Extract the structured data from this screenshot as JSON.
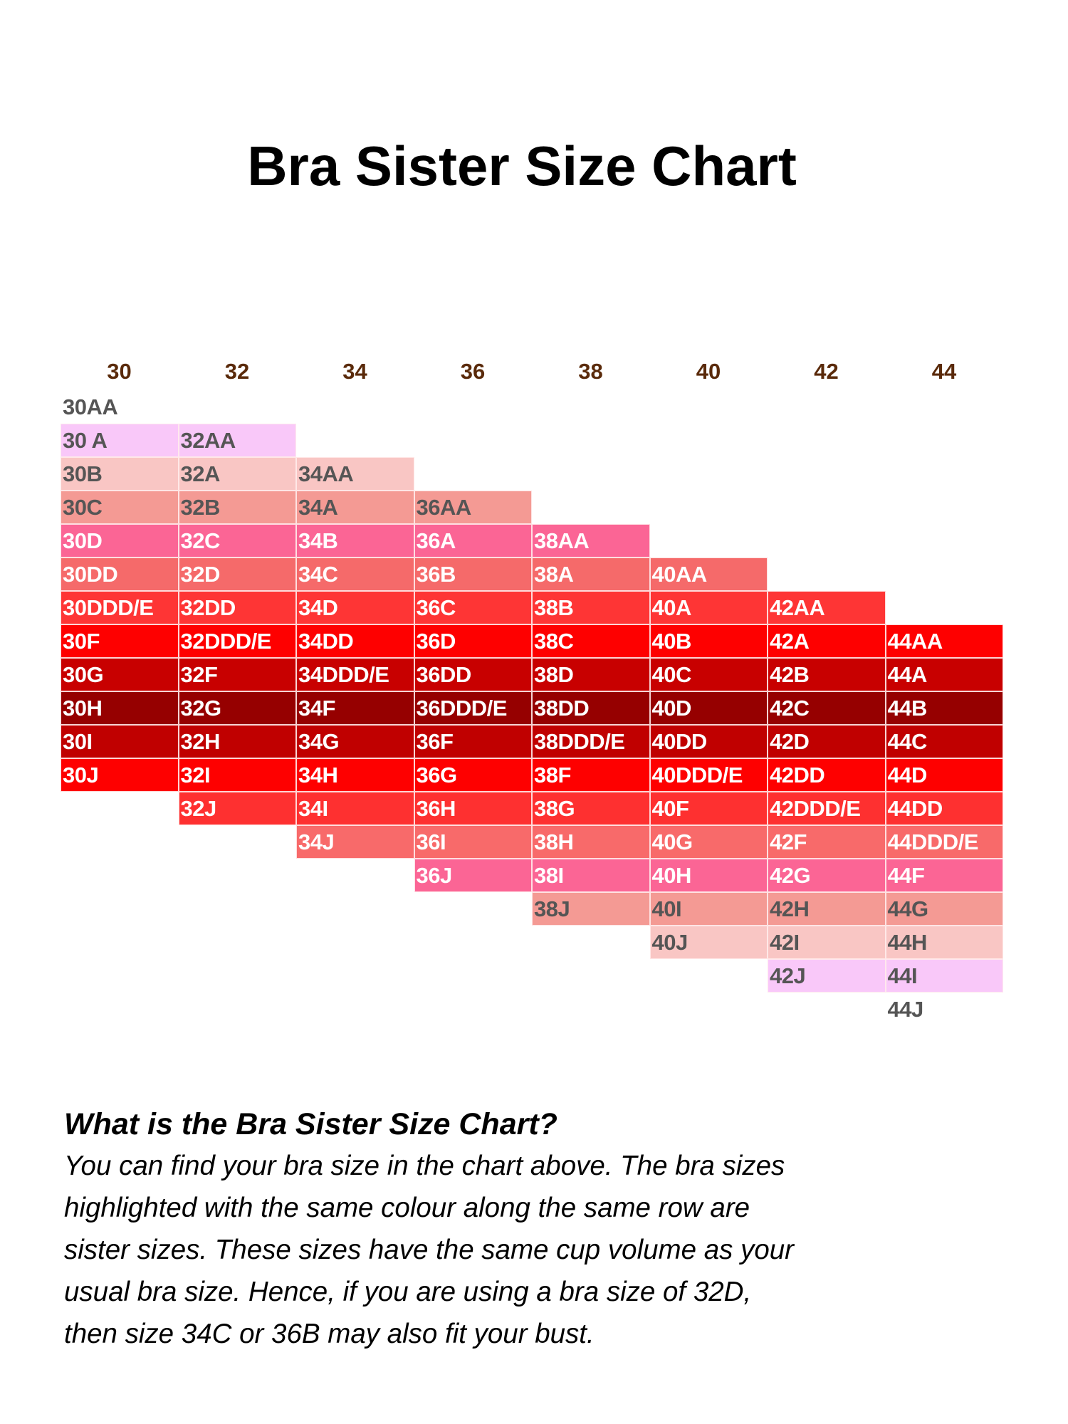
{
  "title": "Bra Sister Size Chart",
  "chart_data": {
    "type": "table",
    "title": "Bra Sister Size Chart",
    "column_headers": [
      "30",
      "32",
      "34",
      "36",
      "38",
      "40",
      "42",
      "44"
    ],
    "columns": [
      {
        "band": "30",
        "start_row": 0,
        "sizes": [
          "30AA",
          "30 A",
          "30B",
          "30C",
          "30D",
          "30DD",
          "30DDD/E",
          "30F",
          "30G",
          "30H",
          "30I",
          "30J"
        ]
      },
      {
        "band": "32",
        "start_row": 1,
        "sizes": [
          "32AA",
          "32A",
          "32B",
          "32C",
          "32D",
          "32DD",
          "32DDD/E",
          "32F",
          "32G",
          "32H",
          "32I",
          "32J"
        ]
      },
      {
        "band": "34",
        "start_row": 2,
        "sizes": [
          "34AA",
          "34A",
          "34B",
          "34C",
          "34D",
          "34DD",
          "34DDD/E",
          "34F",
          "34G",
          "34H",
          "34I",
          "34J"
        ]
      },
      {
        "band": "36",
        "start_row": 3,
        "sizes": [
          "36AA",
          "36A",
          "36B",
          "36C",
          "36D",
          "36DD",
          "36DDD/E",
          "36F",
          "36G",
          "36H",
          "36I",
          "36J"
        ]
      },
      {
        "band": "38",
        "start_row": 4,
        "sizes": [
          "38AA",
          "38A",
          "38B",
          "38C",
          "38D",
          "38DD",
          "38DDD/E",
          "38F",
          "38G",
          "38H",
          "38I",
          "38J"
        ]
      },
      {
        "band": "40",
        "start_row": 5,
        "sizes": [
          "40AA",
          "40A",
          "40B",
          "40C",
          "40D",
          "40DD",
          "40DDD/E",
          "40F",
          "40G",
          "40H",
          "40I",
          "40J"
        ]
      },
      {
        "band": "42",
        "start_row": 6,
        "sizes": [
          "42AA",
          "42A",
          "42B",
          "42C",
          "42D",
          "42DD",
          "42DDD/E",
          "42F",
          "42G",
          "42H",
          "42I",
          "42J"
        ]
      },
      {
        "band": "44",
        "start_row": 7,
        "sizes": [
          "44AA",
          "44A",
          "44B",
          "44C",
          "44D",
          "44DD",
          "44DDD/E",
          "44F",
          "44G",
          "44H",
          "44I",
          "44J"
        ]
      }
    ],
    "row_colors": [
      "#ffffff",
      "#f9c8f9",
      "#f9c6c4",
      "#f49a94",
      "#fb6595",
      "#f56a6a",
      "#fe3535",
      "#fe0000",
      "#c80000",
      "#960000",
      "#c00000",
      "#fe0000",
      "#fe3030",
      "#f86a6a",
      "#fb6595",
      "#f49a94",
      "#f9c6c4",
      "#f9c8f9",
      "#ffffff"
    ],
    "row_text_colors": [
      "#555555",
      "#555555",
      "#555555",
      "#555555",
      "#ffffff",
      "#ffffff",
      "#ffffff",
      "#ffffff",
      "#ffffff",
      "#ffffff",
      "#ffffff",
      "#ffffff",
      "#ffffff",
      "#ffffff",
      "#ffffff",
      "#555555",
      "#555555",
      "#555555",
      "#555555"
    ],
    "header_color": "#5a2a0a"
  },
  "explanation": {
    "heading": "What is the Bra Sister Size Chart?",
    "lines": [
      "You can find your bra size in the chart above. The bra sizes",
      "highlighted with the same colour along the same row are",
      "sister sizes. These sizes have the same cup volume as your",
      "usual bra size. Hence, if you are using a bra size of 32D,",
      "then size 34C or 36B may also fit your bust."
    ]
  }
}
